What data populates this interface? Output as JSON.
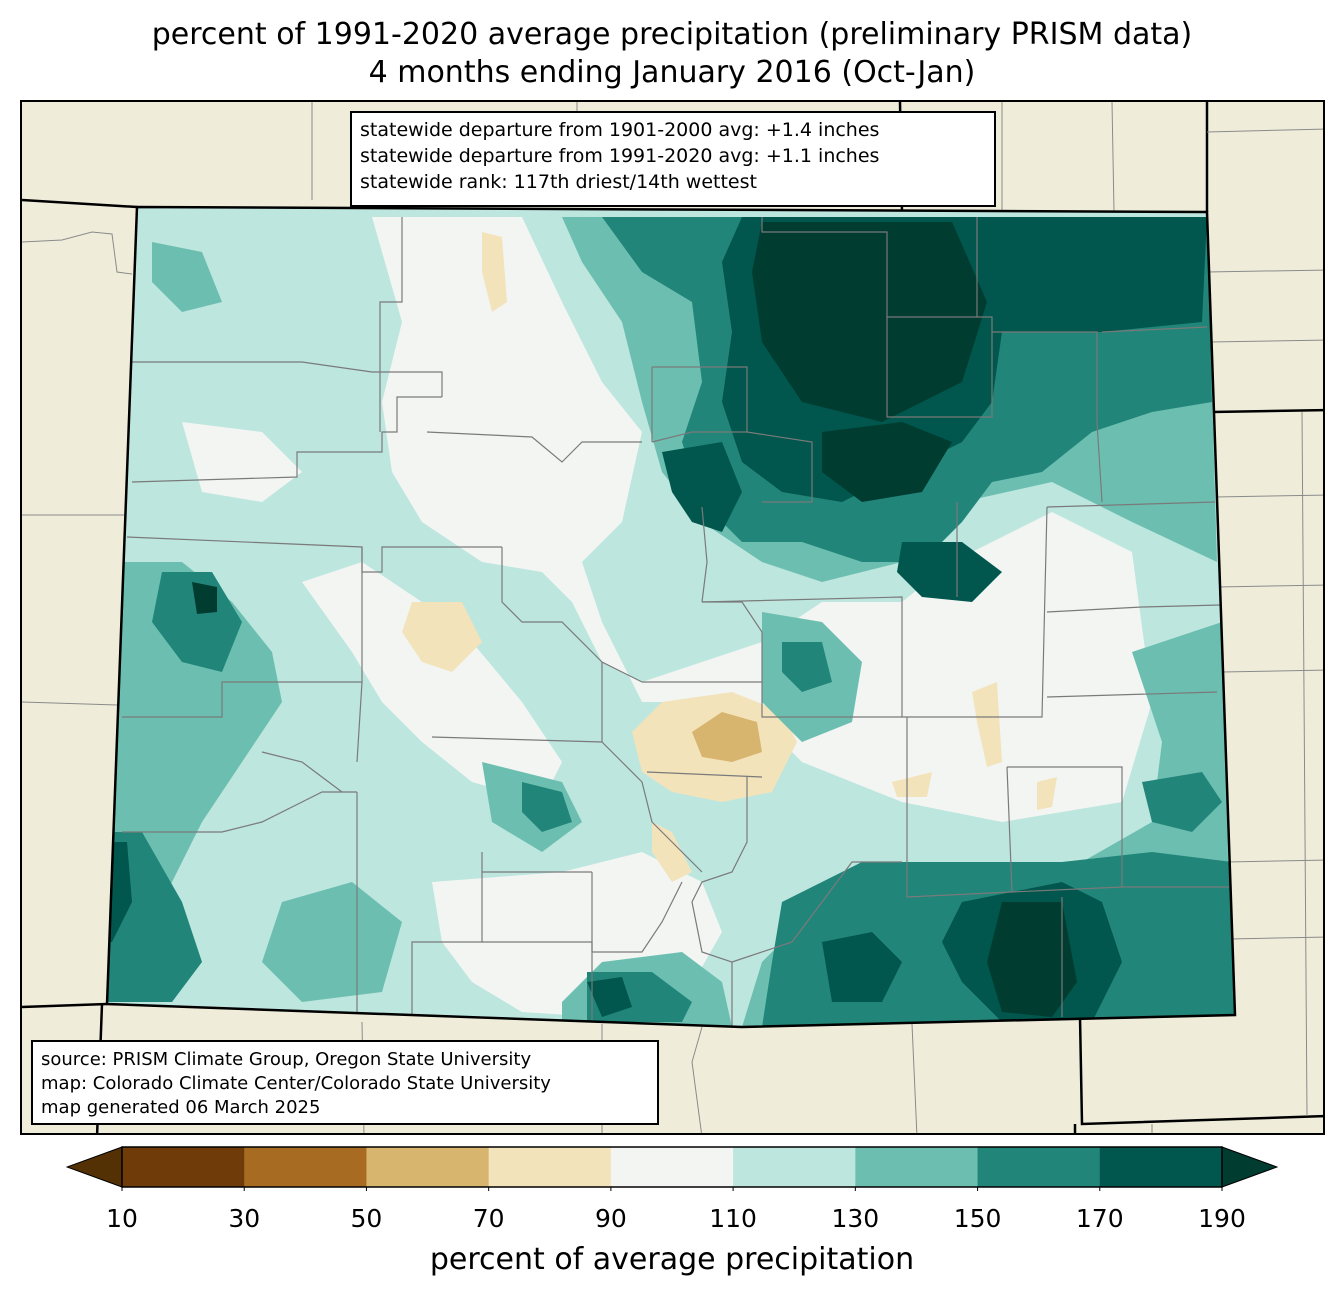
{
  "title": {
    "line1": "percent of 1991-2020 average precipitation (preliminary PRISM data)",
    "line2": "4 months ending January 2016 (Oct-Jan)"
  },
  "stats_box": {
    "line1": "statewide departure from 1901-2000 avg: +1.4 inches",
    "line2": "statewide departure from 1991-2020 avg: +1.1 inches",
    "line3": "statewide rank: 117th driest/14th wettest"
  },
  "source_box": {
    "line1": "source: PRISM Climate Group, Oregon State University",
    "line2": "map: Colorado Climate Center/Colorado State University",
    "line3": "map generated 06 March 2025"
  },
  "colorbar": {
    "label": "percent of average precipitation",
    "ticks": [
      "10",
      "30",
      "50",
      "70",
      "90",
      "110",
      "130",
      "150",
      "170",
      "190"
    ],
    "under_color": "#543005",
    "over_color": "#003c30",
    "bin_colors": [
      "#6f3b08",
      "#a86b22",
      "#d8b56e",
      "#f3e3bb",
      "#f3f5f3",
      "#bde6df",
      "#6cbfb0",
      "#218579",
      "#01574d"
    ]
  },
  "map": {
    "background_color": "#efedda",
    "state_fill_base": "#bde6df",
    "outline_color": "#000000",
    "county_line_color": "#808080"
  }
}
